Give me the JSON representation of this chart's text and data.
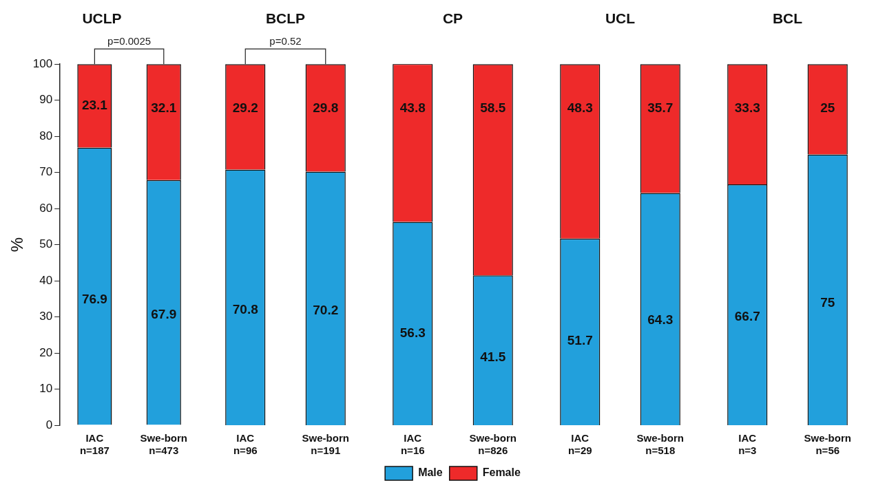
{
  "chart_data": [
    {
      "type": "bar",
      "title": "UCLP",
      "ylabel": "%",
      "categories": [
        "IAC\nn=187",
        "Swe-born\nn=473"
      ],
      "stacked": true,
      "data_labels": true,
      "ylim": [
        0,
        100
      ],
      "yticks": [
        0,
        10,
        20,
        30,
        40,
        50,
        60,
        70,
        80,
        90,
        100
      ],
      "annotations": [
        "p=0.0025"
      ],
      "series": [
        {
          "color": "#22a0dc",
          "values": [
            76.9,
            67.9
          ]
        },
        {
          "color": "#ee2a2a",
          "values": [
            23.1,
            32.1
          ]
        }
      ]
    },
    {
      "type": "bar",
      "title": "BCLP",
      "categories": [
        "IAC\nn=96",
        "Swe-born\nn=191"
      ],
      "stacked": true,
      "data_labels": true,
      "ylim": [
        0,
        100
      ],
      "tick_labels": "x",
      "annotations": [
        "p=0.52"
      ],
      "series": [
        {
          "color": "#22a0dc",
          "values": [
            70.8,
            70.2
          ]
        },
        {
          "color": "#ee2a2a",
          "values": [
            29.2,
            29.8
          ]
        }
      ]
    },
    {
      "type": "bar",
      "title": "CP",
      "categories": [
        "IAC\nn=16",
        "Swe-born\nn=826"
      ],
      "stacked": true,
      "data_labels": true,
      "ylim": [
        0,
        100
      ],
      "tick_labels": "x",
      "legend": "bottom",
      "series": [
        {
          "name": "Male",
          "color": "#22a0dc",
          "values": [
            56.3,
            41.5
          ]
        },
        {
          "name": "Female",
          "color": "#ee2a2a",
          "values": [
            43.8,
            58.5
          ]
        }
      ]
    },
    {
      "type": "bar",
      "title": "UCL",
      "categories": [
        "IAC\nn=29",
        "Swe-born\nn=518"
      ],
      "stacked": true,
      "data_labels": true,
      "ylim": [
        0,
        100
      ],
      "tick_labels": "x",
      "series": [
        {
          "color": "#22a0dc",
          "values": [
            51.7,
            64.3
          ]
        },
        {
          "color": "#ee2a2a",
          "values": [
            48.3,
            35.7
          ]
        }
      ]
    },
    {
      "type": "bar",
      "title": "BCL",
      "categories": [
        "IAC\nn=3",
        "Swe-born\nn=56"
      ],
      "stacked": true,
      "data_labels": true,
      "ylim": [
        0,
        100
      ],
      "tick_labels": "x",
      "series": [
        {
          "color": "#22a0dc",
          "values": [
            66.7,
            75
          ]
        },
        {
          "color": "#ee2a2a",
          "values": [
            33.3,
            25
          ]
        }
      ]
    }
  ]
}
